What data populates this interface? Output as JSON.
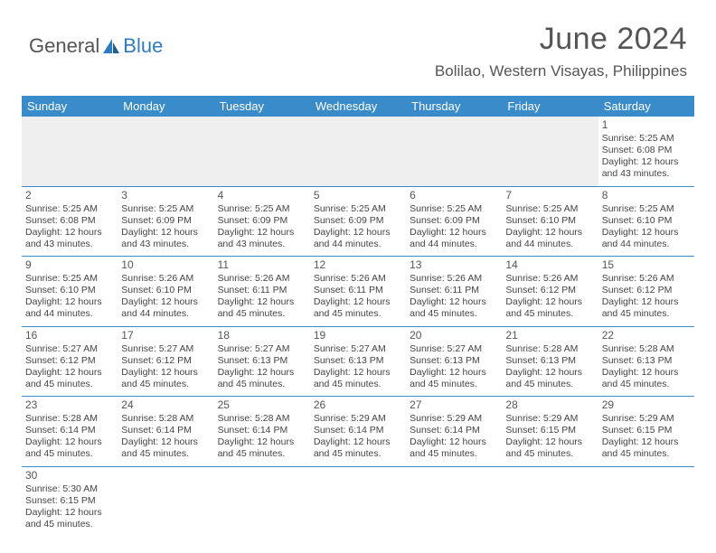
{
  "logo": {
    "text1": "General",
    "text2": "Blue"
  },
  "title": "June 2024",
  "location": "Bolilao, Western Visayas, Philippines",
  "colors": {
    "header_bg": "#3a8bc9",
    "header_text": "#ffffff",
    "divider": "#3a8bc9",
    "text": "#444444",
    "title_text": "#555555",
    "logo_accent": "#2f7bbf",
    "empty_bg": "#efefef"
  },
  "weekdays": [
    "Sunday",
    "Monday",
    "Tuesday",
    "Wednesday",
    "Thursday",
    "Friday",
    "Saturday"
  ],
  "weeks": [
    [
      null,
      null,
      null,
      null,
      null,
      null,
      {
        "n": "1",
        "sunrise": "Sunrise: 5:25 AM",
        "sunset": "Sunset: 6:08 PM",
        "day1": "Daylight: 12 hours",
        "day2": "and 43 minutes."
      }
    ],
    [
      {
        "n": "2",
        "sunrise": "Sunrise: 5:25 AM",
        "sunset": "Sunset: 6:08 PM",
        "day1": "Daylight: 12 hours",
        "day2": "and 43 minutes."
      },
      {
        "n": "3",
        "sunrise": "Sunrise: 5:25 AM",
        "sunset": "Sunset: 6:09 PM",
        "day1": "Daylight: 12 hours",
        "day2": "and 43 minutes."
      },
      {
        "n": "4",
        "sunrise": "Sunrise: 5:25 AM",
        "sunset": "Sunset: 6:09 PM",
        "day1": "Daylight: 12 hours",
        "day2": "and 43 minutes."
      },
      {
        "n": "5",
        "sunrise": "Sunrise: 5:25 AM",
        "sunset": "Sunset: 6:09 PM",
        "day1": "Daylight: 12 hours",
        "day2": "and 44 minutes."
      },
      {
        "n": "6",
        "sunrise": "Sunrise: 5:25 AM",
        "sunset": "Sunset: 6:09 PM",
        "day1": "Daylight: 12 hours",
        "day2": "and 44 minutes."
      },
      {
        "n": "7",
        "sunrise": "Sunrise: 5:25 AM",
        "sunset": "Sunset: 6:10 PM",
        "day1": "Daylight: 12 hours",
        "day2": "and 44 minutes."
      },
      {
        "n": "8",
        "sunrise": "Sunrise: 5:25 AM",
        "sunset": "Sunset: 6:10 PM",
        "day1": "Daylight: 12 hours",
        "day2": "and 44 minutes."
      }
    ],
    [
      {
        "n": "9",
        "sunrise": "Sunrise: 5:25 AM",
        "sunset": "Sunset: 6:10 PM",
        "day1": "Daylight: 12 hours",
        "day2": "and 44 minutes."
      },
      {
        "n": "10",
        "sunrise": "Sunrise: 5:26 AM",
        "sunset": "Sunset: 6:10 PM",
        "day1": "Daylight: 12 hours",
        "day2": "and 44 minutes."
      },
      {
        "n": "11",
        "sunrise": "Sunrise: 5:26 AM",
        "sunset": "Sunset: 6:11 PM",
        "day1": "Daylight: 12 hours",
        "day2": "and 45 minutes."
      },
      {
        "n": "12",
        "sunrise": "Sunrise: 5:26 AM",
        "sunset": "Sunset: 6:11 PM",
        "day1": "Daylight: 12 hours",
        "day2": "and 45 minutes."
      },
      {
        "n": "13",
        "sunrise": "Sunrise: 5:26 AM",
        "sunset": "Sunset: 6:11 PM",
        "day1": "Daylight: 12 hours",
        "day2": "and 45 minutes."
      },
      {
        "n": "14",
        "sunrise": "Sunrise: 5:26 AM",
        "sunset": "Sunset: 6:12 PM",
        "day1": "Daylight: 12 hours",
        "day2": "and 45 minutes."
      },
      {
        "n": "15",
        "sunrise": "Sunrise: 5:26 AM",
        "sunset": "Sunset: 6:12 PM",
        "day1": "Daylight: 12 hours",
        "day2": "and 45 minutes."
      }
    ],
    [
      {
        "n": "16",
        "sunrise": "Sunrise: 5:27 AM",
        "sunset": "Sunset: 6:12 PM",
        "day1": "Daylight: 12 hours",
        "day2": "and 45 minutes."
      },
      {
        "n": "17",
        "sunrise": "Sunrise: 5:27 AM",
        "sunset": "Sunset: 6:12 PM",
        "day1": "Daylight: 12 hours",
        "day2": "and 45 minutes."
      },
      {
        "n": "18",
        "sunrise": "Sunrise: 5:27 AM",
        "sunset": "Sunset: 6:13 PM",
        "day1": "Daylight: 12 hours",
        "day2": "and 45 minutes."
      },
      {
        "n": "19",
        "sunrise": "Sunrise: 5:27 AM",
        "sunset": "Sunset: 6:13 PM",
        "day1": "Daylight: 12 hours",
        "day2": "and 45 minutes."
      },
      {
        "n": "20",
        "sunrise": "Sunrise: 5:27 AM",
        "sunset": "Sunset: 6:13 PM",
        "day1": "Daylight: 12 hours",
        "day2": "and 45 minutes."
      },
      {
        "n": "21",
        "sunrise": "Sunrise: 5:28 AM",
        "sunset": "Sunset: 6:13 PM",
        "day1": "Daylight: 12 hours",
        "day2": "and 45 minutes."
      },
      {
        "n": "22",
        "sunrise": "Sunrise: 5:28 AM",
        "sunset": "Sunset: 6:13 PM",
        "day1": "Daylight: 12 hours",
        "day2": "and 45 minutes."
      }
    ],
    [
      {
        "n": "23",
        "sunrise": "Sunrise: 5:28 AM",
        "sunset": "Sunset: 6:14 PM",
        "day1": "Daylight: 12 hours",
        "day2": "and 45 minutes."
      },
      {
        "n": "24",
        "sunrise": "Sunrise: 5:28 AM",
        "sunset": "Sunset: 6:14 PM",
        "day1": "Daylight: 12 hours",
        "day2": "and 45 minutes."
      },
      {
        "n": "25",
        "sunrise": "Sunrise: 5:28 AM",
        "sunset": "Sunset: 6:14 PM",
        "day1": "Daylight: 12 hours",
        "day2": "and 45 minutes."
      },
      {
        "n": "26",
        "sunrise": "Sunrise: 5:29 AM",
        "sunset": "Sunset: 6:14 PM",
        "day1": "Daylight: 12 hours",
        "day2": "and 45 minutes."
      },
      {
        "n": "27",
        "sunrise": "Sunrise: 5:29 AM",
        "sunset": "Sunset: 6:14 PM",
        "day1": "Daylight: 12 hours",
        "day2": "and 45 minutes."
      },
      {
        "n": "28",
        "sunrise": "Sunrise: 5:29 AM",
        "sunset": "Sunset: 6:15 PM",
        "day1": "Daylight: 12 hours",
        "day2": "and 45 minutes."
      },
      {
        "n": "29",
        "sunrise": "Sunrise: 5:29 AM",
        "sunset": "Sunset: 6:15 PM",
        "day1": "Daylight: 12 hours",
        "day2": "and 45 minutes."
      }
    ],
    [
      {
        "n": "30",
        "sunrise": "Sunrise: 5:30 AM",
        "sunset": "Sunset: 6:15 PM",
        "day1": "Daylight: 12 hours",
        "day2": "and 45 minutes."
      },
      null,
      null,
      null,
      null,
      null,
      null
    ]
  ]
}
